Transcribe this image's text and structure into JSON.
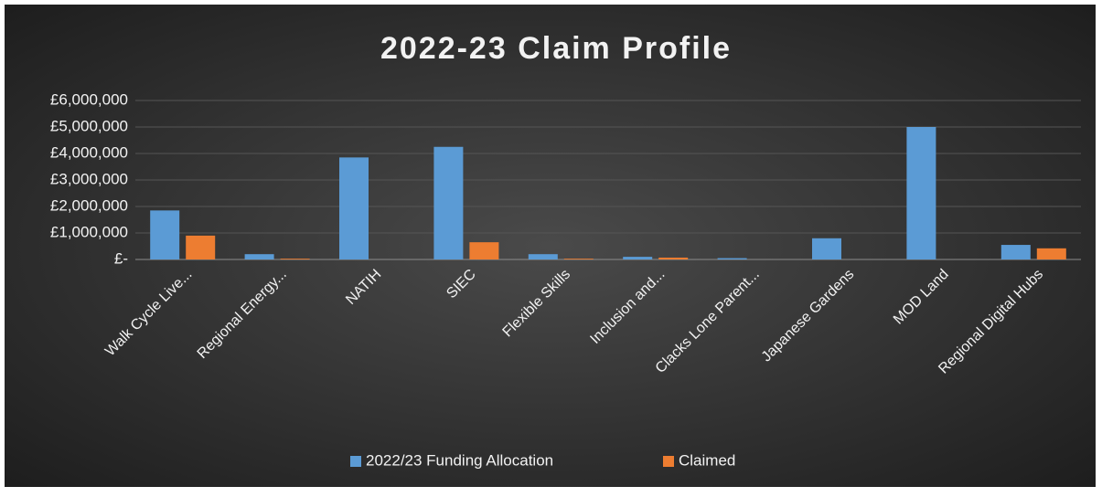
{
  "chart_data": {
    "type": "bar",
    "title": "2022-23 Claim Profile",
    "categories": [
      "Walk Cycle Live...",
      "Regional Energy...",
      "NATIH",
      "SIEC",
      "Flexible Skills",
      "Inclusion and...",
      "Clacks Lone Parent...",
      "Japanese Gardens",
      "MOD Land",
      "Regional Digital Hubs"
    ],
    "series": [
      {
        "name": "2022/23 Funding Allocation",
        "color": "#5b9bd5",
        "values": [
          1850000,
          200000,
          3850000,
          4250000,
          200000,
          100000,
          50000,
          800000,
          5000000,
          550000
        ]
      },
      {
        "name": "Claimed",
        "color": "#ed7d31",
        "values": [
          900000,
          30000,
          0,
          650000,
          30000,
          70000,
          0,
          0,
          0,
          420000
        ]
      }
    ],
    "ylim": [
      0,
      6000000
    ],
    "yticks": [
      {
        "value": 0,
        "label": "£-"
      },
      {
        "value": 1000000,
        "label": "£1,000,000"
      },
      {
        "value": 2000000,
        "label": "£2,000,000"
      },
      {
        "value": 3000000,
        "label": "£3,000,000"
      },
      {
        "value": 4000000,
        "label": "£4,000,000"
      },
      {
        "value": 5000000,
        "label": "£5,000,000"
      },
      {
        "value": 6000000,
        "label": "£6,000,000"
      }
    ],
    "grid": true,
    "legend": "bottom"
  }
}
